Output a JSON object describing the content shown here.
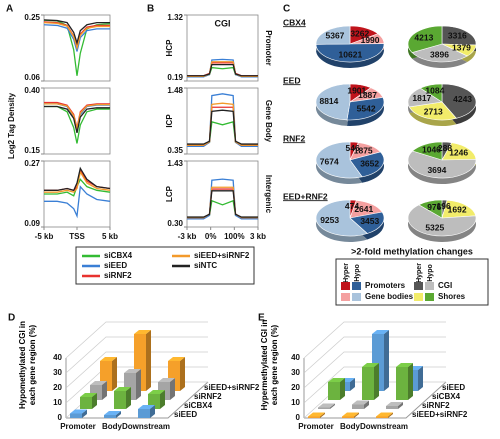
{
  "legend": {
    "names": [
      "siCBX4",
      "siEED",
      "siRNF2",
      "siEED+siRNF2",
      "siNTC"
    ],
    "colors": [
      "#33bb33",
      "#3a7fd5",
      "#e8322f",
      "#f39a2b",
      "#222222"
    ]
  },
  "chart_data": [
    {
      "type": "line",
      "label": "A",
      "ylabel": "Log2 Tag Density",
      "x": [
        -5,
        -3,
        -1.5,
        -0.5,
        0,
        0.5,
        1.5,
        3,
        5
      ],
      "xlim": [
        -5,
        5
      ],
      "xticks": [
        {
          "value": -5,
          "label": "-5 kb"
        },
        {
          "value": 0,
          "label": "TSS"
        },
        {
          "value": 5,
          "label": "5 kb"
        }
      ],
      "panels": [
        {
          "ylim": [
            0.06,
            0.25
          ],
          "yticks": [
            0.06,
            0.25
          ],
          "series": [
            {
              "values": [
                0.235,
                0.233,
                0.22,
                0.15,
                0.075,
                0.14,
                0.21,
                0.222,
                0.225
              ]
            },
            {
              "values": [
                0.222,
                0.22,
                0.212,
                0.18,
                0.145,
                0.185,
                0.205,
                0.21,
                0.21
              ]
            },
            {
              "values": [
                0.23,
                0.228,
                0.22,
                0.19,
                0.16,
                0.195,
                0.215,
                0.22,
                0.22
              ]
            },
            {
              "values": [
                0.228,
                0.226,
                0.218,
                0.188,
                0.155,
                0.192,
                0.212,
                0.217,
                0.217
              ]
            },
            {
              "values": [
                0.236,
                0.234,
                0.228,
                0.2,
                0.17,
                0.205,
                0.222,
                0.228,
                0.228
              ]
            }
          ]
        },
        {
          "ylim": [
            0.15,
            0.4
          ],
          "yticks": [
            0.15,
            {
              "value": 0.4,
              "label": "0.40"
            }
          ],
          "series": [
            {
              "values": [
                0.33,
                0.33,
                0.31,
                0.25,
                0.19,
                0.26,
                0.31,
                0.32,
                0.32
              ]
            },
            {
              "values": [
                0.34,
                0.34,
                0.33,
                0.29,
                0.24,
                0.3,
                0.33,
                0.335,
                0.335
              ]
            },
            {
              "values": [
                0.345,
                0.345,
                0.335,
                0.3,
                0.25,
                0.31,
                0.335,
                0.34,
                0.34
              ]
            },
            {
              "values": [
                0.34,
                0.34,
                0.332,
                0.295,
                0.245,
                0.305,
                0.332,
                0.337,
                0.337
              ]
            },
            {
              "values": [
                0.33,
                0.33,
                0.32,
                0.285,
                0.23,
                0.29,
                0.32,
                0.325,
                0.325
              ]
            }
          ]
        },
        {
          "ylim": [
            0.09,
            0.27
          ],
          "yticks": [
            0.09,
            0.27
          ],
          "series": [
            {
              "values": [
                0.18,
                0.18,
                0.185,
                0.175,
                0.2,
                0.22,
                0.2,
                0.19,
                0.185
              ]
            },
            {
              "values": [
                0.16,
                0.16,
                0.155,
                0.14,
                0.12,
                0.2,
                0.18,
                0.165,
                0.16
              ]
            },
            {
              "values": [
                0.19,
                0.19,
                0.195,
                0.19,
                0.2,
                0.245,
                0.215,
                0.2,
                0.195
              ]
            },
            {
              "values": [
                0.185,
                0.185,
                0.19,
                0.185,
                0.195,
                0.24,
                0.21,
                0.195,
                0.19
              ]
            },
            {
              "values": [
                0.19,
                0.19,
                0.195,
                0.19,
                0.21,
                0.25,
                0.22,
                0.2,
                0.195
              ]
            }
          ]
        }
      ]
    },
    {
      "type": "line",
      "label": "B",
      "title": "CGI",
      "x": [
        0,
        0.7,
        0.95,
        1.05,
        1.5,
        1.95,
        2.05,
        2.3,
        3
      ],
      "xlim": [
        0,
        3
      ],
      "xticks": [
        {
          "value": 0,
          "label": "-3 kb"
        },
        {
          "value": 1,
          "label": "0%"
        },
        {
          "value": 2,
          "label": "100%"
        },
        {
          "value": 3,
          "label": "3 kb"
        }
      ],
      "panels": [
        {
          "ylabel": "HCP",
          "side_label": "Promoter",
          "ylim": [
            0.19,
            1.32
          ],
          "yticks": [
            0.19,
            1.32
          ],
          "series": [
            {
              "values": [
                0.27,
                0.27,
                0.3,
                0.42,
                0.4,
                0.42,
                0.3,
                0.27,
                0.27
              ]
            },
            {
              "values": [
                0.26,
                0.26,
                0.3,
                0.55,
                0.56,
                0.55,
                0.3,
                0.26,
                0.26
              ]
            },
            {
              "values": [
                0.28,
                0.28,
                0.32,
                0.5,
                0.5,
                0.5,
                0.32,
                0.28,
                0.28
              ]
            },
            {
              "values": [
                0.27,
                0.27,
                0.31,
                0.52,
                0.52,
                0.52,
                0.31,
                0.27,
                0.27
              ]
            },
            {
              "values": [
                0.28,
                0.28,
                0.31,
                0.47,
                0.47,
                0.47,
                0.31,
                0.28,
                0.28
              ]
            }
          ]
        },
        {
          "ylabel": "ICP",
          "side_label": "Gene Body",
          "ylim": [
            0.35,
            1.48
          ],
          "yticks": [
            0.35,
            1.48
          ],
          "series": [
            {
              "values": [
                0.5,
                0.5,
                0.55,
                0.9,
                0.85,
                0.9,
                0.55,
                0.5,
                0.5
              ]
            },
            {
              "values": [
                0.48,
                0.48,
                0.55,
                1.35,
                1.38,
                1.35,
                0.55,
                0.48,
                0.48
              ]
            },
            {
              "values": [
                0.5,
                0.5,
                0.56,
                1.15,
                1.15,
                1.15,
                0.56,
                0.5,
                0.5
              ]
            },
            {
              "values": [
                0.5,
                0.5,
                0.56,
                1.2,
                1.22,
                1.2,
                0.56,
                0.5,
                0.5
              ]
            },
            {
              "values": [
                0.52,
                0.52,
                0.57,
                1.08,
                1.1,
                1.08,
                0.57,
                0.52,
                0.52
              ]
            }
          ]
        },
        {
          "ylabel": "LCP",
          "side_label": "Intergenic",
          "ylim": [
            0.3,
            1.43
          ],
          "yticks": [
            {
              "value": 0.3,
              "label": "0.30"
            },
            1.43
          ],
          "series": [
            {
              "values": [
                0.45,
                0.45,
                0.5,
                0.75,
                0.68,
                0.75,
                0.5,
                0.45,
                0.45
              ]
            },
            {
              "values": [
                0.44,
                0.44,
                0.5,
                1.1,
                1.12,
                1.1,
                0.5,
                0.44,
                0.44
              ]
            },
            {
              "values": [
                0.46,
                0.46,
                0.52,
                0.95,
                0.95,
                0.95,
                0.52,
                0.46,
                0.46
              ]
            },
            {
              "values": [
                0.46,
                0.46,
                0.52,
                0.98,
                0.98,
                0.98,
                0.52,
                0.46,
                0.46
              ]
            },
            {
              "values": [
                0.47,
                0.47,
                0.52,
                0.92,
                0.92,
                0.92,
                0.52,
                0.47,
                0.47
              ]
            }
          ]
        }
      ]
    },
    {
      "type": "pie",
      "label": "C",
      "rows": [
        {
          "label": "CBX4",
          "left": [
            3262,
            1990,
            10621,
            5367
          ],
          "right": [
            3316,
            1379,
            3896,
            4213
          ]
        },
        {
          "label": "EED",
          "left": [
            1901,
            1887,
            5542,
            8814
          ],
          "right": [
            4243,
            2713,
            1817,
            1084
          ]
        },
        {
          "label": "RNF2",
          "left": [
            546,
            1875,
            3652,
            7674
          ],
          "right": [
            288,
            1246,
            3694,
            1046
          ]
        },
        {
          "label": "EED+RNF2",
          "left": [
            474,
            2641,
            3453,
            9253
          ],
          "right": [
            196,
            1692,
            5325,
            976
          ]
        }
      ],
      "left_colors": [
        "#c0141c",
        "#f4a0a0",
        "#2f5f98",
        "#a9c3dc"
      ],
      "right_colors": [
        "#555555",
        "#f2ec6a",
        "#bdbdbd",
        "#5aa832"
      ],
      "legend": {
        "title": ">2-fold methylation changes",
        "left_header": [
          "Hyper",
          "Hypo"
        ],
        "right_header": [
          "Hyper",
          "Hypo"
        ],
        "left_names": [
          "Promoters",
          "Gene bodies"
        ],
        "right_names": [
          "CGI",
          "Shores"
        ]
      }
    },
    {
      "type": "bar3d",
      "label": "D",
      "ylabel": "Hypomethylated CGI in each gene region (%)",
      "categories": [
        "Promoter",
        "Body",
        "Downstream"
      ],
      "ylim": [
        0,
        40
      ],
      "yticks": [
        0,
        10,
        20,
        30,
        40
      ],
      "series": [
        {
          "name": "siEED+siRNF2",
          "color": "#f5a02a",
          "values": [
            20,
            38,
            20
          ]
        },
        {
          "name": "siRNF2",
          "color": "#a5a5a5",
          "values": [
            10,
            18,
            12
          ]
        },
        {
          "name": "siCBX4",
          "color": "#6cb33f",
          "values": [
            8,
            12,
            10
          ]
        },
        {
          "name": "siEED",
          "color": "#5b9bd5",
          "values": [
            3,
            2,
            6
          ]
        }
      ]
    },
    {
      "type": "bar3d",
      "label": "E",
      "ylabel": "Hypermethylated CGI in each gene region (%)",
      "categories": [
        "Promoter",
        "Body",
        "Downstream"
      ],
      "ylim": [
        0,
        40
      ],
      "yticks": [
        0,
        10,
        20,
        30,
        40
      ],
      "series": [
        {
          "name": "siEED",
          "color": "#5b9bd5",
          "values": [
            6,
            38,
            14
          ]
        },
        {
          "name": "siCBX4",
          "color": "#6cb33f",
          "values": [
            12,
            22,
            22
          ]
        },
        {
          "name": "siRNF2",
          "color": "#a5a5a5",
          "values": [
            1,
            3,
            2
          ]
        },
        {
          "name": "siEED+siRNF2",
          "color": "#f5a02a",
          "values": [
            1,
            1,
            1
          ]
        }
      ]
    }
  ]
}
